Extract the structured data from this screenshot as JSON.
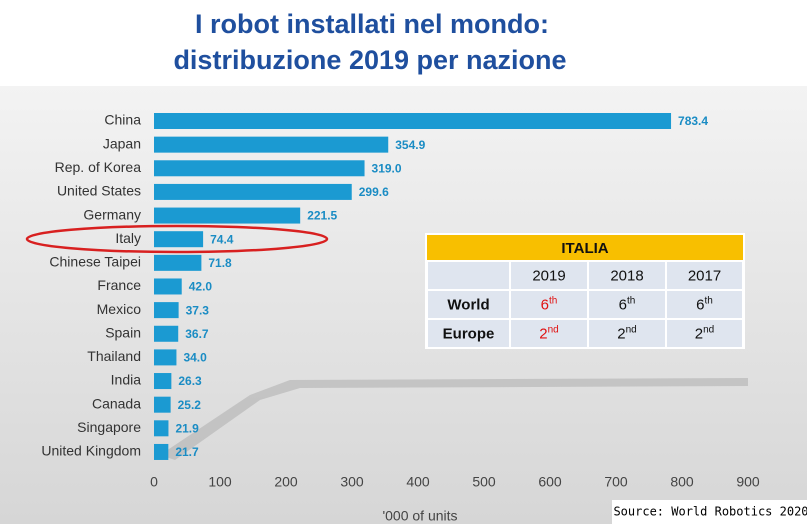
{
  "chart_data": {
    "type": "bar",
    "orientation": "horizontal",
    "title": [
      "I robot installati nel mondo:",
      "distribuzione 2019 per nazione"
    ],
    "categories": [
      "China",
      "Japan",
      "Rep. of Korea",
      "United States",
      "Germany",
      "Italy",
      "Chinese Taipei",
      "France",
      "Mexico",
      "Spain",
      "Thailand",
      "India",
      "Canada",
      "Singapore",
      "United Kingdom"
    ],
    "values": [
      783.4,
      354.9,
      319,
      299.6,
      221.5,
      74.4,
      71.8,
      42,
      37.3,
      36.7,
      34,
      26.3,
      25.2,
      21.9,
      21.7
    ],
    "value_labels": [
      "783.4",
      "354.9",
      "319.0",
      "299.6",
      "221.5",
      "74.4",
      "71.8",
      "42.0",
      "37.3",
      "36.7",
      "34.0",
      "26.3",
      "25.2",
      "21.9",
      "21.7"
    ],
    "color": "#1b9ad2",
    "xlim": [
      0,
      900
    ],
    "xticks": [
      0,
      100,
      200,
      300,
      400,
      500,
      600,
      700,
      800,
      900
    ],
    "x_label": "'000 of units",
    "source": "Source: World Robotics 2020"
  },
  "table": {
    "title": "ITALIA",
    "columns": [
      "2019",
      "2018",
      "2017"
    ],
    "rows": [
      {
        "label": "World",
        "cells": [
          [
            "6",
            "th"
          ],
          [
            "6",
            "th"
          ],
          [
            "6",
            "th"
          ]
        ]
      },
      {
        "label": "Europe",
        "cells": [
          [
            "2",
            "nd"
          ],
          [
            "2",
            "nd"
          ],
          [
            "2",
            "nd"
          ]
        ]
      }
    ]
  }
}
